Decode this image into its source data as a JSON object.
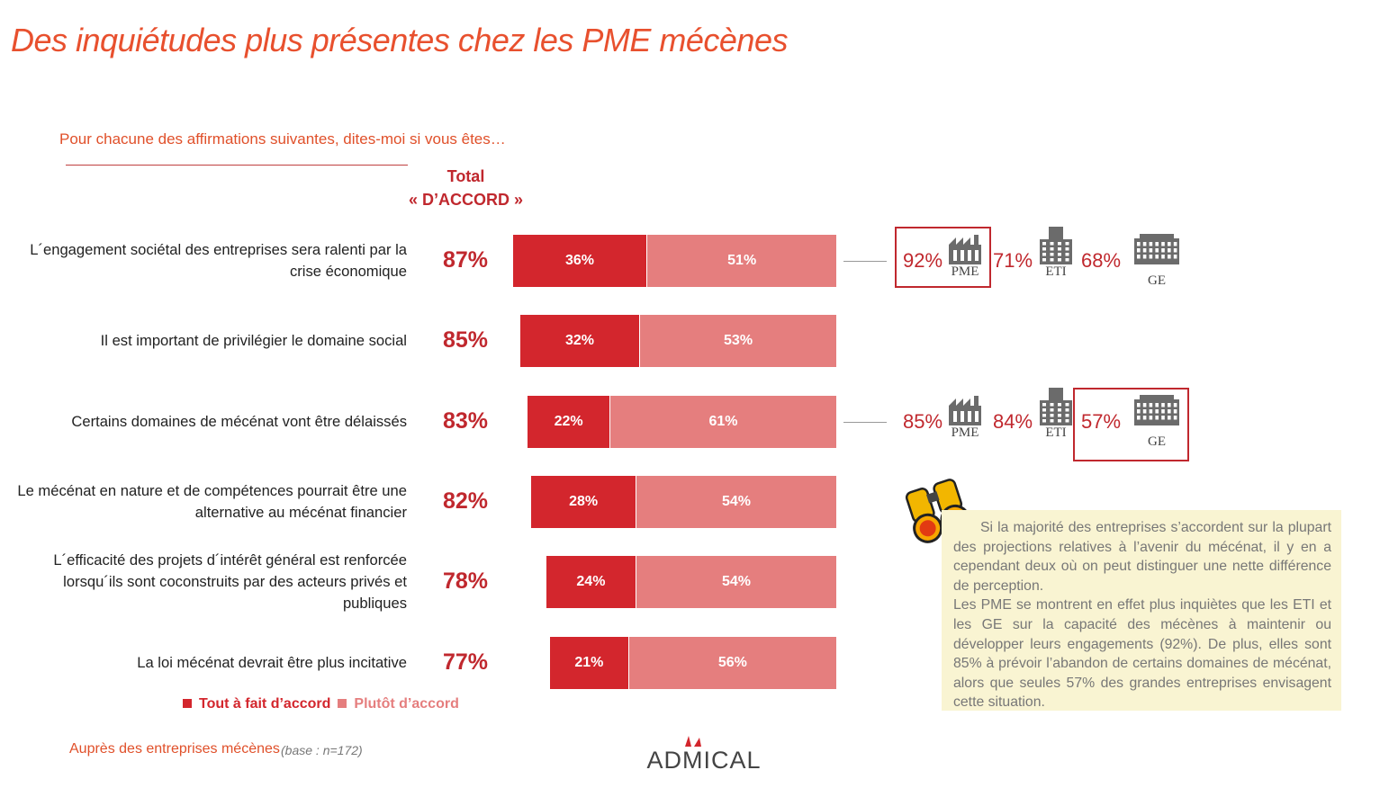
{
  "title": "Des inquiétudes plus présentes chez les PME mécènes",
  "subtitle": "Pour chacune des affirmations suivantes, dites-moi si vous êtes…",
  "chart_data": {
    "type": "bar",
    "orientation": "horizontal",
    "stacked": true,
    "total_header": [
      "Total",
      "« D’ACCORD »"
    ],
    "categories": [
      "L´engagement sociétal des entreprises sera ralenti par la crise économique",
      "Il est important de privilégier le domaine social",
      "Certains domaines de mécénat vont être délaissés",
      "Le mécénat en nature et de compétences pourrait être une alternative au mécénat financier",
      "L´efficacité des projets d´intérêt général est renforcée lorsqu´ils sont coconstruits par des acteurs privés et publiques",
      "La loi mécénat devrait être plus incitative"
    ],
    "series": [
      {
        "name": "Tout à fait d’accord",
        "color": "#d3262d",
        "values": [
          36,
          32,
          22,
          28,
          24,
          21
        ],
        "value_labels": [
          "36%",
          "32%",
          "22%",
          "28%",
          "24%",
          "21%"
        ]
      },
      {
        "name": "Plutôt d’accord",
        "color": "#e57e7e",
        "values": [
          51,
          53,
          61,
          54,
          54,
          56
        ],
        "value_labels": [
          "51%",
          "53%",
          "61%",
          "54%",
          "54%",
          "56%"
        ]
      }
    ],
    "totals": [
      87,
      85,
      83,
      82,
      78,
      77
    ],
    "total_labels": [
      "87%",
      "85%",
      "83%",
      "82%",
      "78%",
      "77%"
    ],
    "comparisons": {
      "labels": [
        "PME",
        "ETI",
        "GE"
      ],
      "rows": [
        {
          "values": [
            92,
            71,
            68
          ],
          "value_labels": [
            "92%",
            "71%",
            "68%"
          ],
          "highlight": "PME"
        },
        null,
        {
          "values": [
            85,
            84,
            57
          ],
          "value_labels": [
            "85%",
            "84%",
            "57%"
          ],
          "highlight": "GE"
        },
        null,
        null,
        null
      ]
    }
  },
  "insight": [
    "Si la majorité des entreprises s’accordent sur la plupart des projections relatives à l’avenir du mécénat, il y en a cependant deux où on peut distinguer une nette différence de perception.",
    "Les PME se montrent en effet plus inquiètes que les ETI et les GE sur la capacité des mécènes à maintenir ou développer leurs engagements (92%). De plus, elles sont 85% à prévoir l’abandon de certains domaines de mécénat, alors que seules 57% des grandes entreprises envisagent cette situation."
  ],
  "footer": {
    "source": "Auprès des entreprises mécènes",
    "base": "(base : n=172)",
    "logo": "ADMICAL"
  }
}
